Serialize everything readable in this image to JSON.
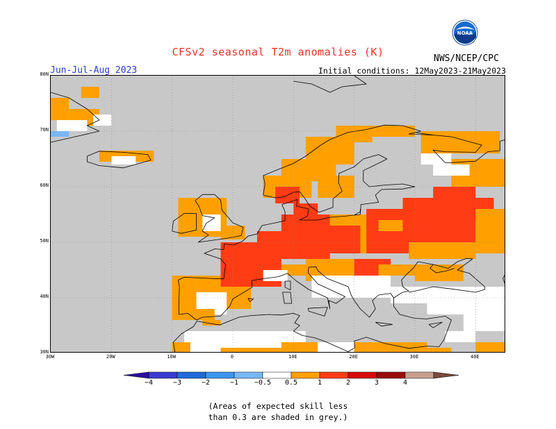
{
  "title": "CFSv2 seasonal T2m anomalies (K)",
  "season": "Jun-Jul-Aug 2023",
  "initial_conditions": "Initial conditions: 12May2023-21May2023",
  "agency": "NWS/NCEP/CPC",
  "logo_text": "NOAA",
  "note_line1": "(Areas of expected skill less",
  "note_line2": "than 0.3 are shaded in grey.)",
  "lat_labels": [
    "80N",
    "70N",
    "60N",
    "50N",
    "40N",
    "30N"
  ],
  "lon_labels": [
    "30W",
    "20W",
    "10W",
    "0",
    "10E",
    "20E",
    "30E",
    "40E"
  ],
  "map_extent": {
    "lon": [
      -30,
      45
    ],
    "lat": [
      30,
      80
    ]
  },
  "colorbar": {
    "labels": [
      "−4",
      "−3",
      "−2",
      "−1",
      "−0.5",
      "0.5",
      "1",
      "2",
      "3",
      "4"
    ],
    "colors": [
      "#2a0f9e",
      "#3a3ad2",
      "#1f6ad8",
      "#3c96ee",
      "#78b8f5",
      "#ffffff",
      "#ffa000",
      "#ff3c14",
      "#d80a0a",
      "#9a0a0a",
      "#c8a090",
      "#7a4a3a"
    ]
  },
  "colors": {
    "skill_low_grey": "#c8c8c8",
    "anomaly_0_5_1": "#ffa000",
    "anomaly_1_2": "#ff3c14",
    "neutral": "#ffffff",
    "cold": "#78b8f5"
  }
}
